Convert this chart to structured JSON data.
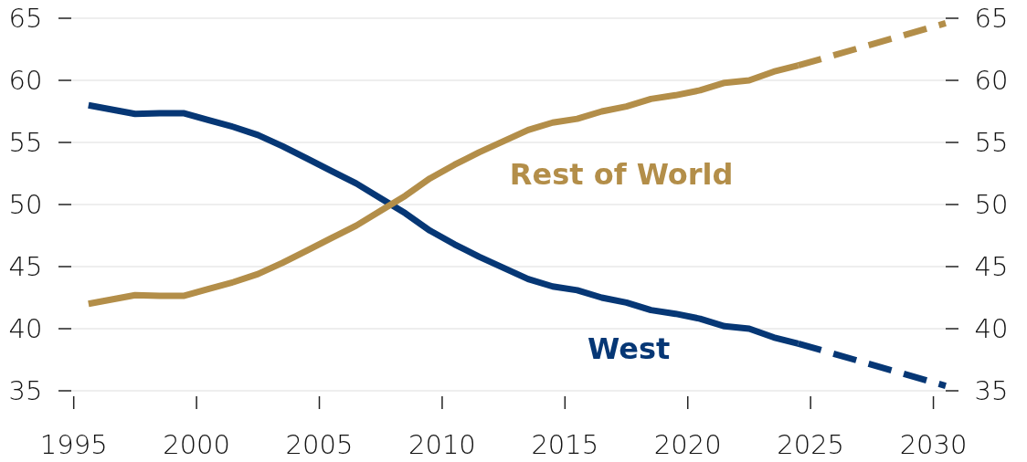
{
  "chart_data": {
    "type": "line",
    "xlim": [
      1994.9,
      2030.5
    ],
    "xticks": [
      1995,
      2000,
      2005,
      2010,
      2015,
      2020,
      2025,
      2030
    ],
    "ylim": [
      35,
      65
    ],
    "yticks": [
      35,
      40,
      45,
      50,
      55,
      60,
      65
    ],
    "y2lim": [
      35,
      65
    ],
    "y2ticks": [
      35,
      40,
      45,
      50,
      55,
      60,
      65
    ],
    "grid": "y",
    "series": [
      {
        "name": "West",
        "color": "#063775",
        "line_style": "solid",
        "x": [
          1995.6,
          1997.5,
          1998.5,
          1999.5,
          2000.5,
          2001.5,
          2002.5,
          2003.5,
          2004.5,
          2005.5,
          2006.5,
          2007.5,
          2008.5,
          2009.5,
          2010.5,
          2011.5,
          2012.5,
          2013.5,
          2014.5,
          2015.5,
          2016.5,
          2017.5,
          2018.5,
          2019.5,
          2020.5,
          2021.5,
          2022.5,
          2023.5,
          2024.5
        ],
        "values": [
          58.0,
          57.3,
          57.35,
          57.35,
          56.8,
          56.25,
          55.6,
          54.7,
          53.7,
          52.7,
          51.7,
          50.5,
          49.3,
          47.9,
          46.8,
          45.8,
          44.9,
          44.0,
          43.4,
          43.1,
          42.5,
          42.1,
          41.5,
          41.2,
          40.8,
          40.2,
          40.0,
          39.3,
          38.8
        ]
      },
      {
        "color": "#063775",
        "line_style": "dashed",
        "x": [
          2024.5,
          2030.5
        ],
        "values": [
          38.8,
          35.4
        ]
      },
      {
        "name": "Rest of World",
        "color": "#b38e49",
        "line_style": "solid",
        "x": [
          1995.6,
          1997.5,
          1998.5,
          1999.5,
          2000.5,
          2001.5,
          2002.5,
          2003.5,
          2004.5,
          2005.5,
          2006.5,
          2007.5,
          2008.5,
          2009.5,
          2010.5,
          2011.5,
          2012.5,
          2013.5,
          2014.5,
          2015.5,
          2016.5,
          2017.5,
          2018.5,
          2019.5,
          2020.5,
          2021.5,
          2022.5,
          2023.5,
          2024.5
        ],
        "values": [
          42.0,
          42.7,
          42.65,
          42.65,
          43.2,
          43.75,
          44.4,
          45.3,
          46.3,
          47.3,
          48.3,
          49.5,
          50.7,
          52.1,
          53.2,
          54.2,
          55.1,
          56.0,
          56.6,
          56.9,
          57.5,
          57.9,
          58.5,
          58.8,
          59.2,
          59.8,
          60.0,
          60.7,
          61.2
        ]
      },
      {
        "color": "#b38e49",
        "line_style": "dashed",
        "x": [
          2024.5,
          2030.5
        ],
        "values": [
          61.2,
          64.6
        ]
      }
    ]
  }
}
